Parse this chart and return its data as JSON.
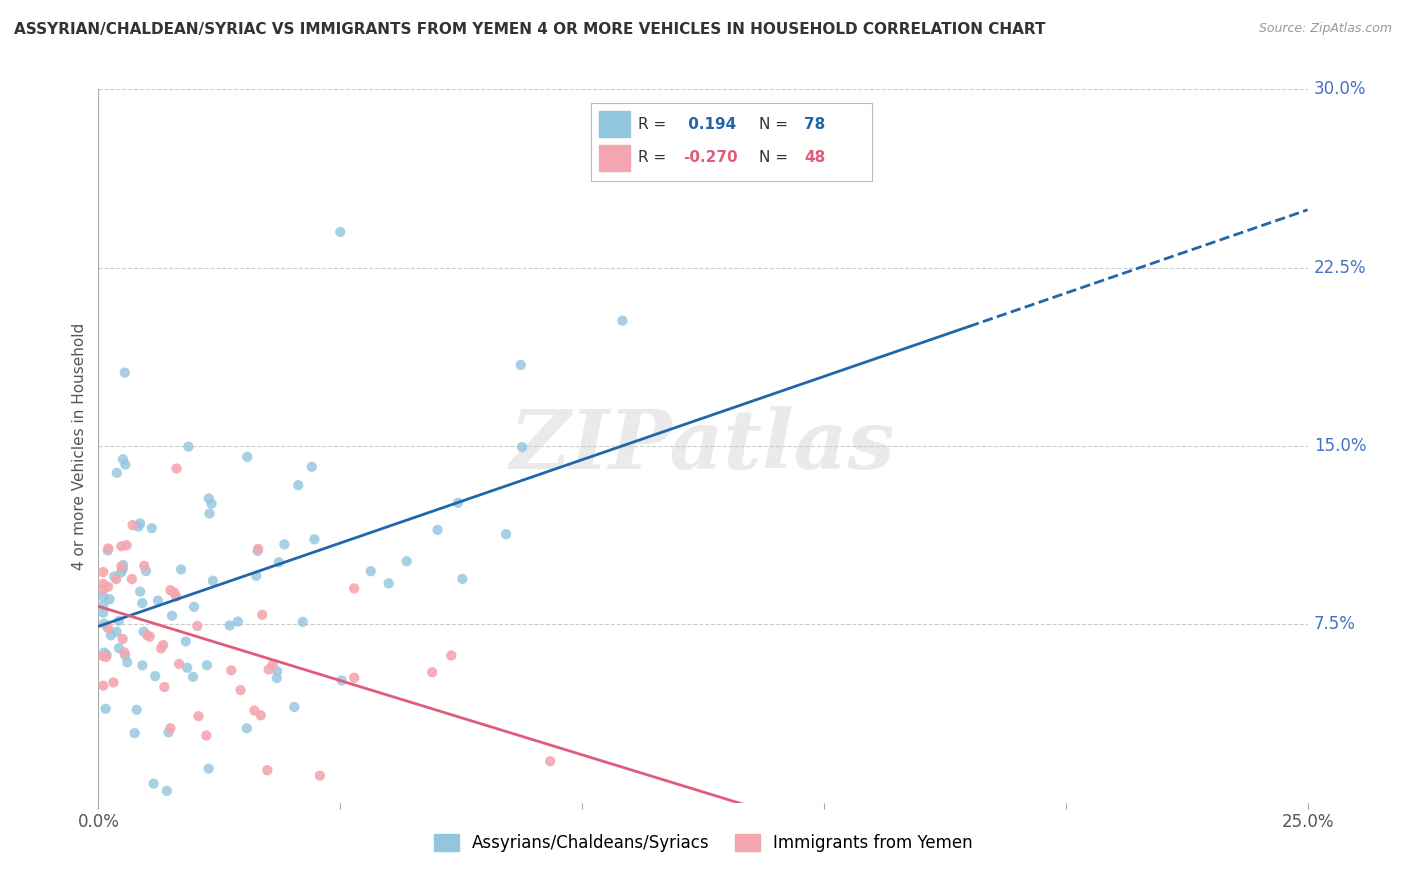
{
  "title": "ASSYRIAN/CHALDEAN/SYRIAC VS IMMIGRANTS FROM YEMEN 4 OR MORE VEHICLES IN HOUSEHOLD CORRELATION CHART",
  "source": "Source: ZipAtlas.com",
  "ylabel": "4 or more Vehicles in Household",
  "xlim": [
    0.0,
    0.25
  ],
  "ylim": [
    0.0,
    0.3
  ],
  "xtick_vals": [
    0.0,
    0.05,
    0.1,
    0.15,
    0.2,
    0.25
  ],
  "xtick_labels": [
    "0.0%",
    "",
    "",
    "",
    "",
    "25.0%"
  ],
  "ytick_vals": [
    0.0,
    0.075,
    0.15,
    0.225,
    0.3
  ],
  "ytick_labels": [
    "",
    "7.5%",
    "15.0%",
    "22.5%",
    "30.0%"
  ],
  "series1_color": "#92c5de",
  "series2_color": "#f4a6b0",
  "trend1_color": "#2166ac",
  "trend2_color": "#e05c7a",
  "R1": 0.194,
  "N1": 78,
  "R2": -0.27,
  "N2": 48,
  "series1_label": "Assyrians/Chaldeans/Syriacs",
  "series2_label": "Immigrants from Yemen",
  "watermark_text": "ZIPatlas",
  "background_color": "#ffffff",
  "grid_color": "#cccccc",
  "title_color": "#333333",
  "source_color": "#999999",
  "right_tick_color": "#4472C4"
}
